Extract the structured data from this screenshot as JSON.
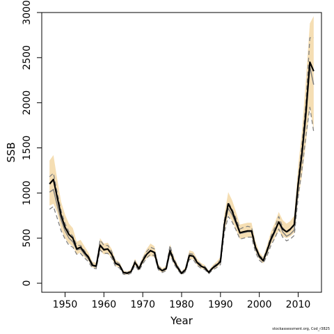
{
  "chart_data": {
    "type": "line",
    "xlabel": "Year",
    "ylabel": "SSB",
    "xlim": [
      1944,
      2016
    ],
    "ylim": [
      -100,
      3000
    ],
    "x_ticks": [
      1950,
      1960,
      1970,
      1980,
      1990,
      2000,
      2010
    ],
    "y_ticks": [
      0,
      500,
      1000,
      1500,
      2000,
      2500,
      3000
    ],
    "grid": false,
    "legend": "none",
    "colors": {
      "band": "#f5deb3",
      "estimate": "#000000",
      "previous": "#808080"
    },
    "years": [
      1946,
      1947,
      1948,
      1949,
      1950,
      1951,
      1952,
      1953,
      1954,
      1955,
      1956,
      1957,
      1958,
      1959,
      1960,
      1961,
      1962,
      1963,
      1964,
      1965,
      1966,
      1967,
      1968,
      1969,
      1970,
      1971,
      1972,
      1973,
      1974,
      1975,
      1976,
      1977,
      1978,
      1979,
      1980,
      1981,
      1982,
      1983,
      1984,
      1985,
      1986,
      1987,
      1988,
      1989,
      1990,
      1991,
      1992,
      1993,
      1994,
      1995,
      1996,
      1997,
      1998,
      1999,
      2000,
      2001,
      2002,
      2003,
      2004,
      2005,
      2006,
      2007,
      2008,
      2009,
      2010,
      2011,
      2012,
      2013,
      2014
    ],
    "series": [
      {
        "role": "estimate",
        "values": [
          1100,
          1150,
          950,
          750,
          620,
          540,
          500,
          380,
          400,
          340,
          290,
          200,
          190,
          420,
          370,
          380,
          320,
          220,
          200,
          120,
          110,
          130,
          230,
          160,
          250,
          320,
          360,
          340,
          170,
          140,
          160,
          360,
          250,
          170,
          110,
          150,
          310,
          300,
          230,
          190,
          170,
          120,
          170,
          200,
          240,
          650,
          880,
          800,
          680,
          560,
          570,
          580,
          580,
          400,
          300,
          250,
          360,
          490,
          580,
          680,
          600,
          570,
          600,
          650,
          1100,
          1450,
          1900,
          2450,
          2350
        ]
      },
      {
        "role": "lower",
        "values": [
          860,
          880,
          780,
          600,
          500,
          440,
          410,
          320,
          340,
          290,
          250,
          175,
          165,
          360,
          320,
          330,
          280,
          190,
          175,
          105,
          95,
          115,
          200,
          140,
          220,
          275,
          300,
          290,
          145,
          120,
          140,
          305,
          215,
          145,
          95,
          130,
          270,
          265,
          200,
          165,
          150,
          105,
          150,
          175,
          210,
          570,
          760,
          690,
          590,
          490,
          500,
          510,
          510,
          350,
          265,
          220,
          315,
          430,
          500,
          580,
          520,
          500,
          520,
          560,
          930,
          1200,
          1550,
          1960,
          1700
        ]
      },
      {
        "role": "upper",
        "values": [
          1360,
          1420,
          1150,
          900,
          760,
          660,
          610,
          460,
          480,
          410,
          340,
          240,
          225,
          500,
          440,
          450,
          380,
          260,
          235,
          140,
          130,
          155,
          270,
          190,
          295,
          380,
          440,
          410,
          210,
          165,
          190,
          430,
          300,
          205,
          130,
          180,
          365,
          350,
          270,
          225,
          200,
          140,
          200,
          240,
          290,
          760,
          1010,
          920,
          790,
          650,
          660,
          670,
          670,
          465,
          345,
          290,
          420,
          570,
          670,
          790,
          700,
          660,
          690,
          750,
          1300,
          1700,
          2260,
          2880,
          2960
        ]
      },
      {
        "role": "previous-upper",
        "values": [
          1180,
          1220,
          1000,
          800,
          660,
          570,
          520,
          420,
          420,
          360,
          300,
          220,
          200,
          480,
          420,
          420,
          350,
          240,
          215,
          130,
          120,
          140,
          250,
          175,
          270,
          350,
          400,
          380,
          190,
          150,
          170,
          420,
          270,
          190,
          120,
          160,
          330,
          320,
          245,
          205,
          185,
          130,
          180,
          215,
          260,
          700,
          900,
          820,
          720,
          600,
          620,
          630,
          620,
          420,
          310,
          270,
          380,
          520,
          620,
          740,
          620,
          560,
          590,
          640,
          1150,
          1550,
          2000,
          2720,
          2720
        ]
      },
      {
        "role": "previous-mid",
        "values": [
          1010,
          1040,
          860,
          700,
          580,
          500,
          460,
          370,
          380,
          320,
          270,
          195,
          180,
          430,
          380,
          380,
          320,
          215,
          195,
          115,
          108,
          128,
          230,
          155,
          245,
          320,
          365,
          345,
          170,
          135,
          155,
          380,
          245,
          170,
          108,
          145,
          300,
          295,
          225,
          185,
          168,
          118,
          165,
          195,
          235,
          640,
          830,
          760,
          660,
          550,
          560,
          570,
          570,
          385,
          285,
          245,
          345,
          470,
          565,
          680,
          570,
          520,
          545,
          590,
          1060,
          1420,
          1830,
          2400,
          2200
        ]
      },
      {
        "role": "previous-lower",
        "values": [
          820,
          850,
          720,
          580,
          490,
          420,
          400,
          320,
          330,
          280,
          240,
          170,
          160,
          370,
          330,
          330,
          280,
          185,
          170,
          100,
          92,
          112,
          200,
          135,
          215,
          280,
          320,
          305,
          150,
          118,
          138,
          330,
          215,
          150,
          92,
          128,
          265,
          260,
          200,
          165,
          150,
          105,
          148,
          172,
          205,
          560,
          740,
          680,
          590,
          490,
          500,
          510,
          510,
          345,
          255,
          220,
          305,
          420,
          500,
          600,
          510,
          470,
          490,
          530,
          950,
          1270,
          1640,
          1950,
          1680
        ]
      }
    ]
  },
  "credit_text": "stockassessment.org, Cod_r3825"
}
